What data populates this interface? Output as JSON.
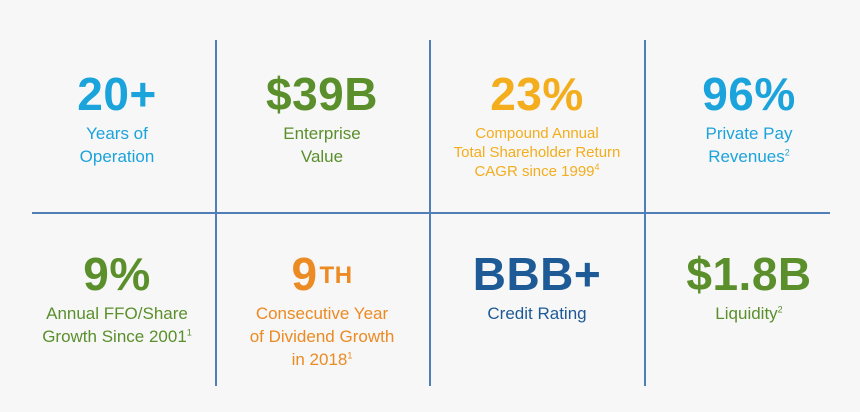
{
  "stats": [
    {
      "value": "20+",
      "label": "Years of\nOperation",
      "sup": ""
    },
    {
      "value": "$39B",
      "label": "Enterprise\nValue",
      "sup": ""
    },
    {
      "value": "23%",
      "label": "Compound Annual\nTotal Shareholder Return\nCAGR since 1999",
      "sup": "4"
    },
    {
      "value": "96%",
      "label": "Private Pay\nRevenues",
      "sup": "2"
    },
    {
      "value": "9%",
      "label": "Annual FFO/Share\nGrowth Since 2001",
      "sup": "1"
    },
    {
      "value": "9",
      "value_suffix": "TH",
      "label": "Consecutive Year\nof Dividend Growth\nin 2018",
      "sup": "1"
    },
    {
      "value": "BBB+",
      "label": "Credit Rating",
      "sup": ""
    },
    {
      "value": "$1.8B",
      "label": "Liquidity",
      "sup": "2"
    }
  ],
  "colors": {
    "blue": "#1ba3db",
    "green": "#5a8f2b",
    "gold": "#f3ad1d",
    "orange": "#ec8a23",
    "navy": "#1e5a96",
    "grid": "#4f7fb6",
    "background": "#f7f7f7"
  }
}
